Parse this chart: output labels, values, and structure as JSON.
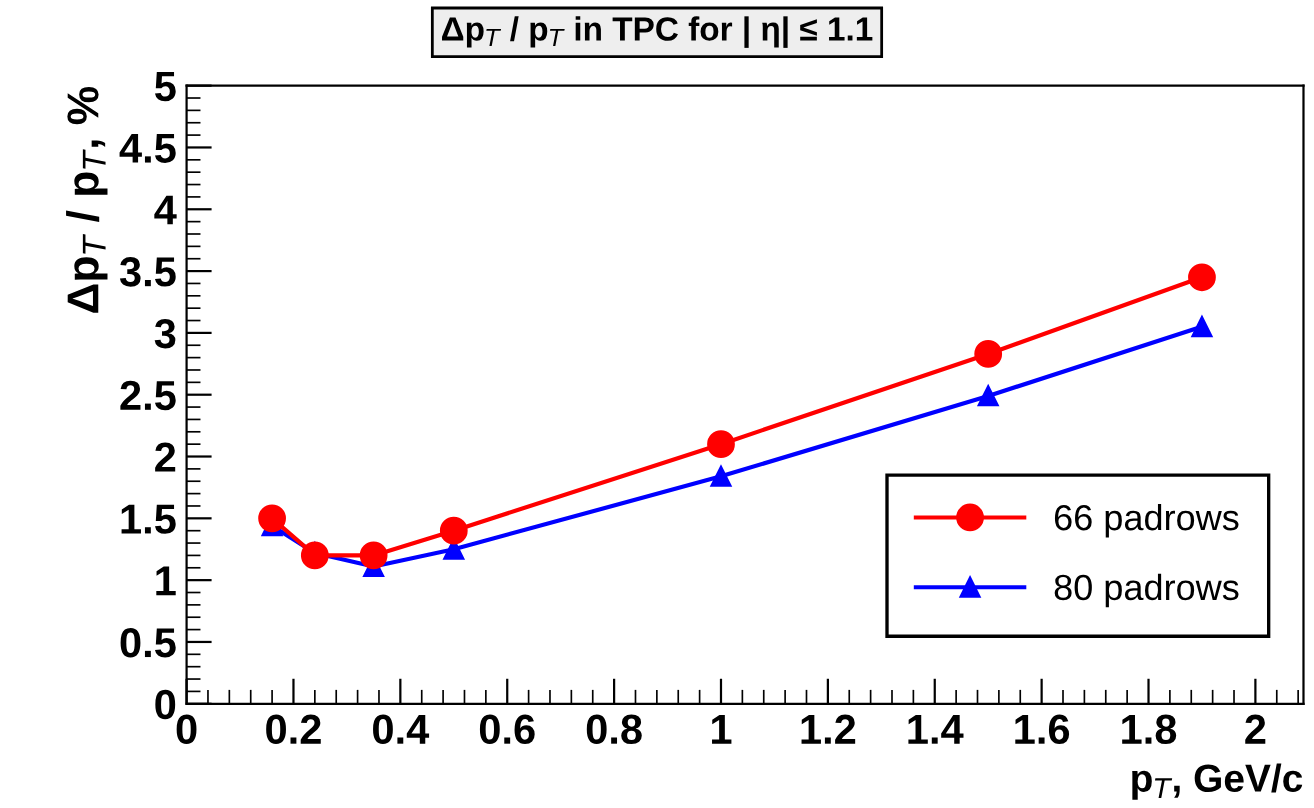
{
  "chart_data": {
    "type": "line",
    "title": "Δp$_{T}$ / p$_{T}$ in TPC for | η| ≤ 1.1",
    "xlabel": "p$_{T}$, GeV/c",
    "ylabel": "Δp$_{T}$ / p$_{T}$, %",
    "x": [
      0.16,
      0.24,
      0.35,
      0.5,
      1.0,
      1.5,
      1.9
    ],
    "series": [
      {
        "name": "66 padrows",
        "color": "#ff0000",
        "marker": "circle",
        "values": [
          1.5,
          1.2,
          1.2,
          1.4,
          2.1,
          2.83,
          3.45
        ]
      },
      {
        "name": "80 padrows",
        "color": "#0000ff",
        "marker": "triangle",
        "values": [
          1.44,
          1.22,
          1.11,
          1.25,
          1.84,
          2.49,
          3.05
        ]
      }
    ],
    "xlim": [
      0,
      2.09
    ],
    "ylim": [
      0,
      5
    ],
    "xticks": [
      0,
      0.2,
      0.4,
      0.6,
      0.8,
      1,
      1.2,
      1.4,
      1.6,
      1.8,
      2
    ],
    "yticks": [
      0,
      0.5,
      1,
      1.5,
      2,
      2.5,
      3,
      3.5,
      4,
      4.5,
      5
    ],
    "grid": false,
    "legend": "bottom right",
    "line_style": "solid"
  }
}
